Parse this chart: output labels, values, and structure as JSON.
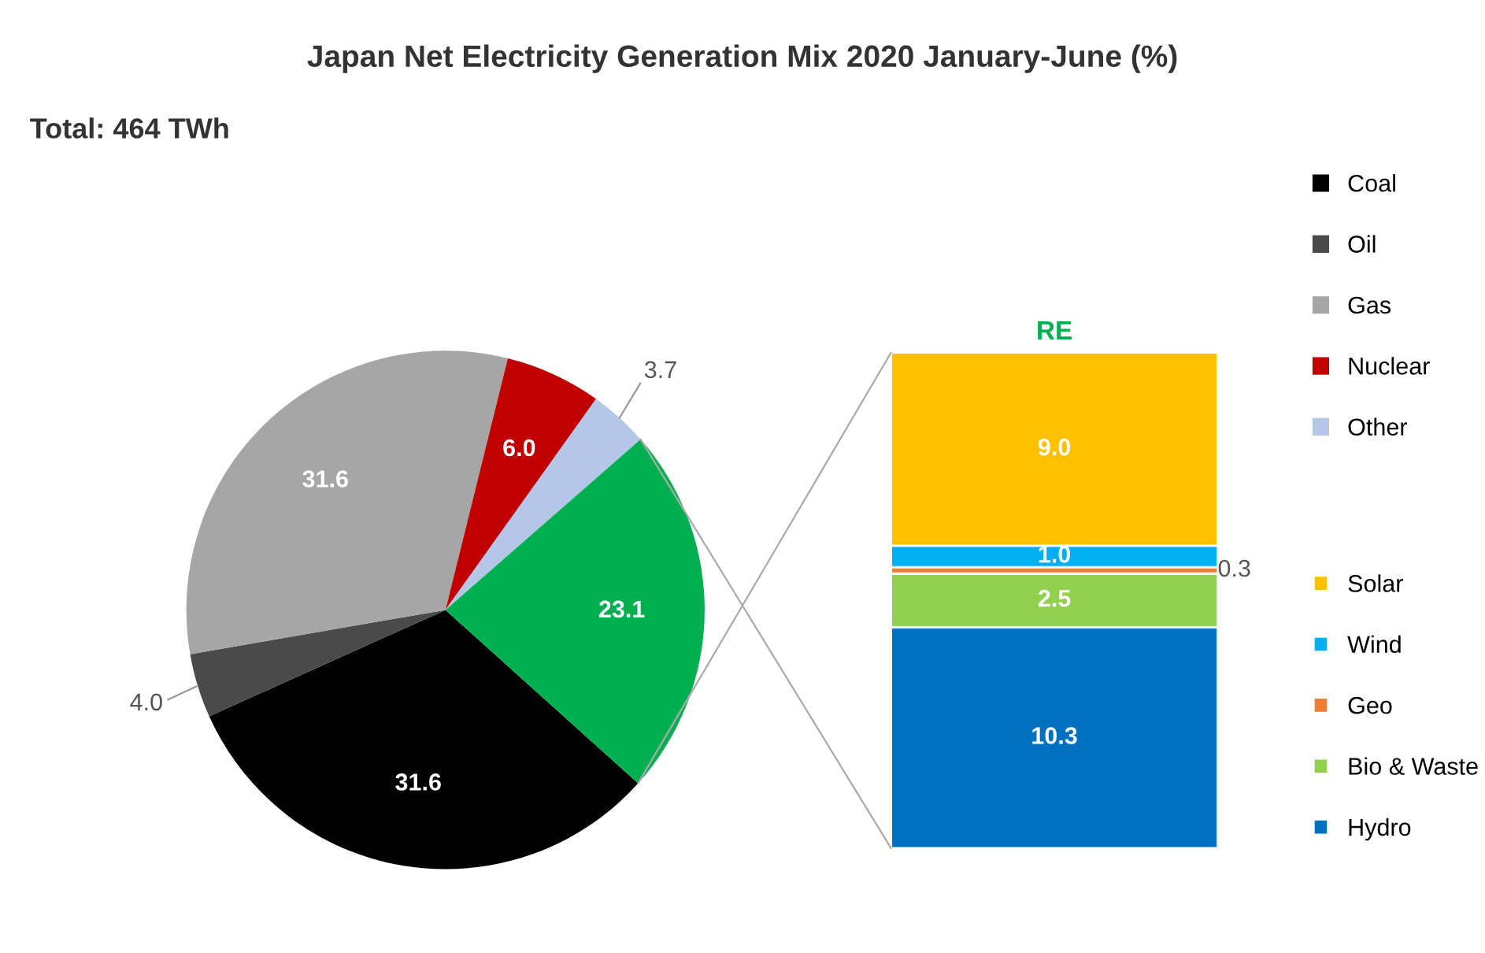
{
  "chart_data": [
    {
      "type": "pie",
      "title": "Japan Net Electricity Generation Mix 2020 January-June (%)",
      "annotations": [
        "Total: 464 TWh"
      ],
      "categories": [
        "Coal",
        "Oil",
        "Gas",
        "Nuclear",
        "Other",
        null
      ],
      "values": [
        31.6,
        4.0,
        31.6,
        6.0,
        3.7,
        23.1
      ],
      "colors": [
        "#000000",
        "#4a4a4a",
        "#a6a6a6",
        "#c00000",
        "#b4c7e7",
        "#00b050"
      ],
      "value_labels": [
        "31.6",
        "4.0",
        "31.6",
        "6.0",
        "3.7",
        "23.1"
      ],
      "legend": "right"
    },
    {
      "type": "bar",
      "title": "RE",
      "stacked": true,
      "categories": [
        null
      ],
      "series": [
        {
          "name": "Hydro",
          "color": "#0070c0",
          "values": [
            10.3
          ],
          "value_labels": [
            "10.3"
          ]
        },
        {
          "name": "Bio & Waste",
          "color": "#92d050",
          "values": [
            2.5
          ],
          "value_labels": [
            "2.5"
          ]
        },
        {
          "name": "Geo",
          "color": "#ed7d31",
          "values": [
            0.3
          ],
          "value_labels": [
            "0.3"
          ]
        },
        {
          "name": "Wind",
          "color": "#00b0f0",
          "values": [
            1.0
          ],
          "value_labels": [
            "1.0"
          ]
        },
        {
          "name": "Solar",
          "color": "#ffc000",
          "values": [
            9.0
          ],
          "value_labels": [
            "9.0"
          ]
        }
      ],
      "legend": "right"
    }
  ]
}
